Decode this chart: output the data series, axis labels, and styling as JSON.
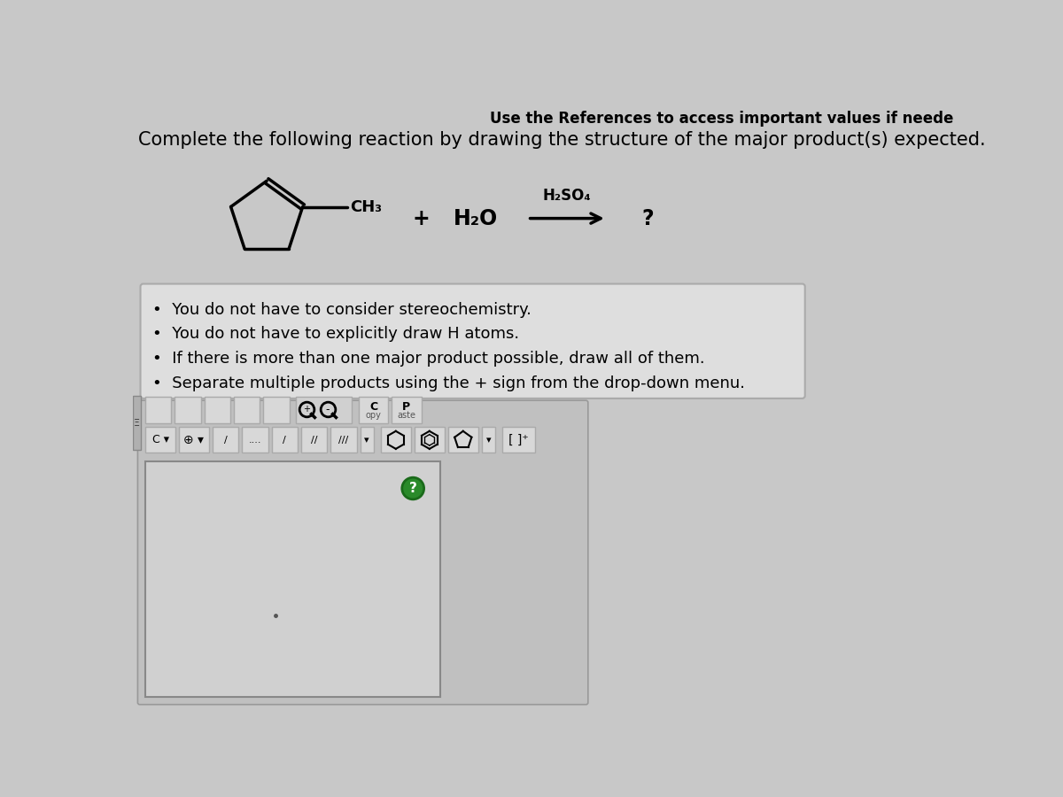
{
  "bg_color": "#c8c8c8",
  "title_line1": "Use the References to access important values if neede",
  "title_line2": "Complete the following reaction by drawing the structure of the major product(s) expected.",
  "title1_fontsize": 12,
  "title2_fontsize": 15,
  "bullet_points": [
    "You do not have to consider stereochemistry.",
    "You do not have to explicitly draw H atoms.",
    "If there is more than one major product possible, draw all of them.",
    "Separate multiple products using the + sign from the drop-down menu."
  ],
  "bullet_fontsize": 13,
  "reagent_fontsize": 17,
  "arrow_label_fontsize": 12,
  "box_bg": "#dedede",
  "box_border": "#aaaaaa",
  "toolbar_bg": "#c0c0c0",
  "canvas_bg": "#d0d0d0",
  "canvas_border": "#888888",
  "green_circle": "#2a8a2a",
  "green_circle_border": "#1a6a1a"
}
